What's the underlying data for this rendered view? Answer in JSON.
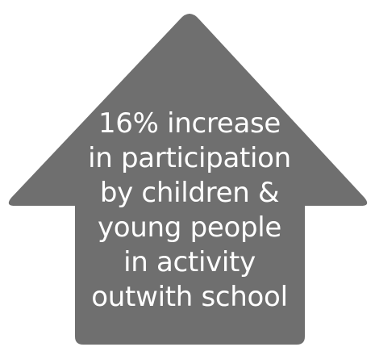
{
  "shape": {
    "icon": "up-arrow-icon",
    "fill_color": "#6f6f6f",
    "text_color": "#ffffff"
  },
  "message": {
    "lines": [
      "16% increase",
      "in participation",
      "by children &",
      "young people",
      "in activity",
      "outwith school"
    ]
  }
}
